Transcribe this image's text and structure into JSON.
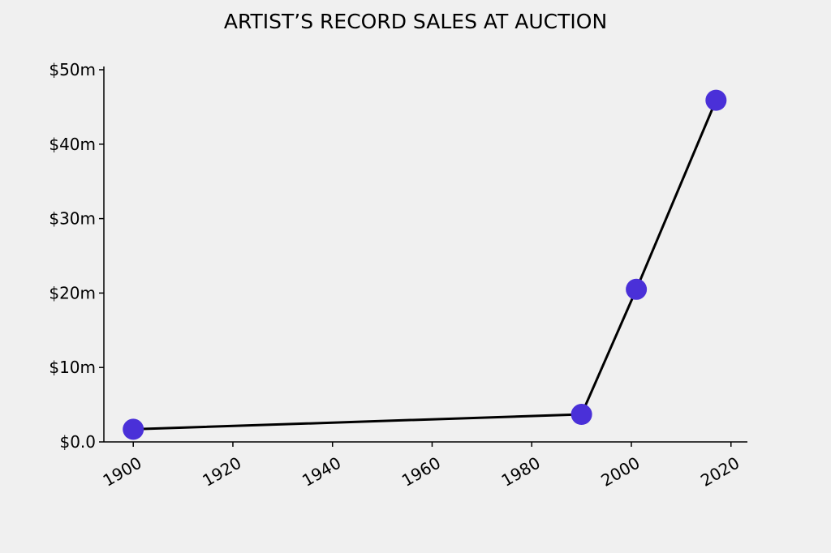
{
  "chart_data": {
    "type": "line",
    "title": "ARTIST’S RECORD SALES AT AUCTION",
    "x": [
      1900,
      1990,
      2001,
      2017
    ],
    "series": [
      {
        "values": [
          1.7,
          3.7,
          20.5,
          45.9
        ],
        "color": "#000000",
        "marker_color": "#4a30d8"
      }
    ],
    "xlim": [
      1894.1,
      2023.3
    ],
    "xticks": [
      1900,
      1920,
      1940,
      1960,
      1980,
      2000,
      2020
    ],
    "ylim": [
      0,
      50
    ],
    "yticks": [
      {
        "value": 0,
        "label": "$0.0"
      },
      {
        "value": 10,
        "label": "$10m"
      },
      {
        "value": 20,
        "label": "$20m"
      },
      {
        "value": 30,
        "label": "$30m"
      },
      {
        "value": 40,
        "label": "$40m"
      },
      {
        "value": 50,
        "label": "$50m"
      }
    ]
  }
}
